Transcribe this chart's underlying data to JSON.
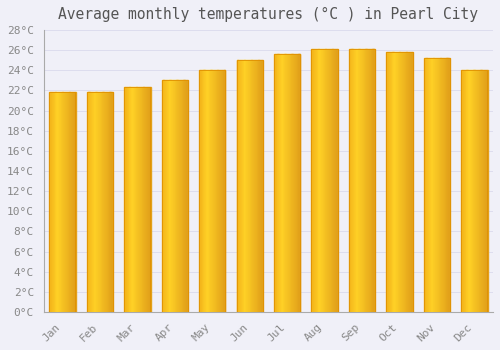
{
  "title": "Average monthly temperatures (°C ) in Pearl City",
  "months": [
    "Jan",
    "Feb",
    "Mar",
    "Apr",
    "May",
    "Jun",
    "Jul",
    "Aug",
    "Sep",
    "Oct",
    "Nov",
    "Dec"
  ],
  "values": [
    21.8,
    21.8,
    22.3,
    23.0,
    24.0,
    25.0,
    25.6,
    26.1,
    26.1,
    25.8,
    25.2,
    24.0
  ],
  "bar_color_left": "#FFD060",
  "bar_color_right": "#F5A000",
  "bar_color_edge": "#E09000",
  "background_color": "#F0F0F8",
  "plot_bg_color": "#F0F0F8",
  "grid_color": "#DDDDEE",
  "text_color": "#888888",
  "title_color": "#555555",
  "ylim": [
    0,
    28
  ],
  "ytick_step": 2,
  "title_fontsize": 10.5,
  "tick_fontsize": 8,
  "font_family": "monospace"
}
